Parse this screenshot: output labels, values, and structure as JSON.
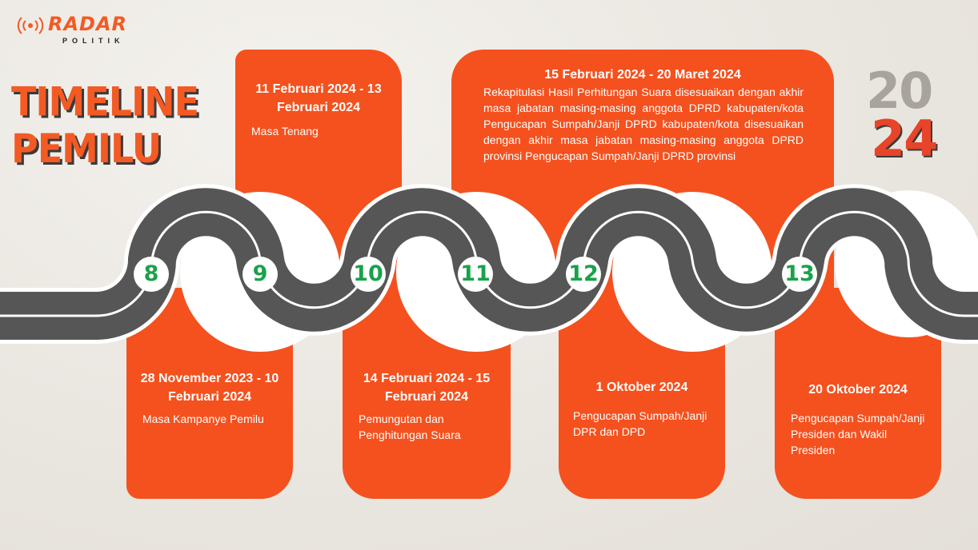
{
  "brand": {
    "name": "RADAR",
    "sub": "POLITIK"
  },
  "title": {
    "line1": "TIMELINE",
    "line2": "PEMILU"
  },
  "year": {
    "top": "20",
    "bottom": "24"
  },
  "colors": {
    "accent": "#f4511e",
    "number": "#19a24a",
    "road": "#555555"
  },
  "milestones": [
    {
      "num": "8",
      "date": "28 November 2023 - 10 Februari 2024",
      "desc": "Masa Kampanye Pemilu"
    },
    {
      "num": "9",
      "date": "11 Februari 2024 - 13 Februari 2024",
      "desc": "Masa Tenang"
    },
    {
      "num": "10",
      "date": "14 Februari 2024 - 15 Februari 2024",
      "desc": "Pemungutan dan Penghitungan Suara"
    },
    {
      "num": "11",
      "date": "15 Februari 2024 - 20 Maret 2024",
      "desc": "Rekapitulasi Hasil Perhitungan Suara disesuaikan dengan akhir masa jabatan masing-masing anggota DPRD kabupaten/kota Pengucapan Sumpah/Janji DPRD kabupaten/kota disesuaikan dengan akhir masa jabatan masing-masing anggota DPRD provinsi Pengucapan Sumpah/Janji DPRD provinsi"
    },
    {
      "num": "12",
      "date": "1 Oktober 2024",
      "desc": "Pengucapan Sumpah/Janji DPR dan DPD"
    },
    {
      "num": "13",
      "date": "20 Oktober 2024",
      "desc": "Pengucapan Sumpah/Janji Presiden dan Wakil Presiden"
    }
  ]
}
